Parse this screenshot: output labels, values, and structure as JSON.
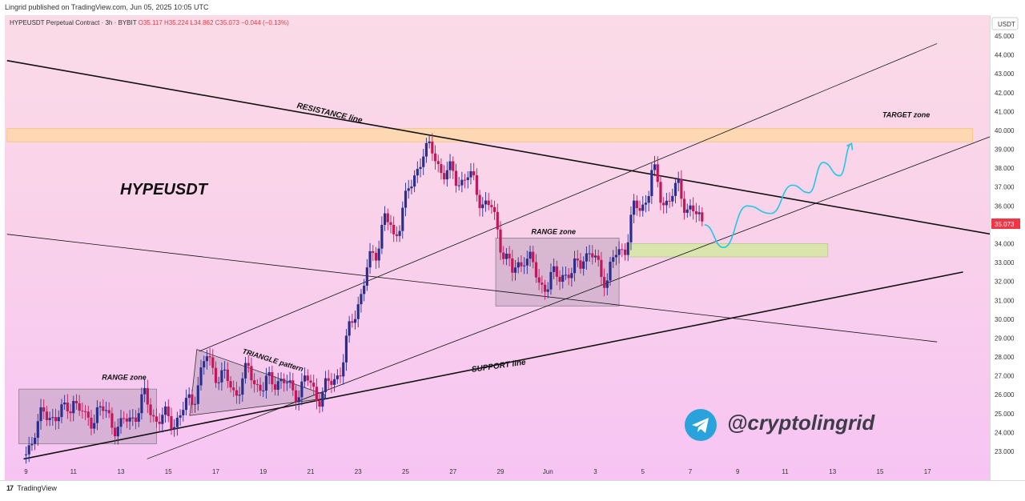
{
  "header": {
    "published": "Lingrid published on TradingView.com, Jun 05, 2025 10:05 UTC"
  },
  "symbol_bar": {
    "name": "HYPEUSDT Perpetual Contract · 3h · BYBIT",
    "open": "O35.117",
    "high": "H35.224",
    "low": "L34.862",
    "close": "C35.073",
    "change": "−0.044 (−0.13%)"
  },
  "brand": {
    "logo": "17",
    "name": "TradingView"
  },
  "watermark": "@cryptolingrid",
  "colors": {
    "up": "#2a2e8f",
    "down": "#c2185b",
    "price_tag": "#f23645",
    "target_zone": "#ffd8a0",
    "support_zone": "#d6e6a6",
    "range_box": "#9e8aa2",
    "wave": "#1ec8e6"
  },
  "chart_data": {
    "type": "candlestick",
    "title": "HYPEUSDT",
    "currency": "USDT",
    "last_price": "35.073",
    "x_ticks": [
      "9",
      "11",
      "13",
      "15",
      "17",
      "19",
      "21",
      "23",
      "25",
      "27",
      "29",
      "Jun",
      "3",
      "5",
      "7",
      "9",
      "11",
      "13",
      "15",
      "17"
    ],
    "y_ticks": [
      "45.000",
      "44.000",
      "43.000",
      "42.000",
      "41.000",
      "40.000",
      "39.000",
      "38.000",
      "37.000",
      "36.000",
      "35.000",
      "34.000",
      "33.000",
      "32.000",
      "31.000",
      "30.000",
      "29.000",
      "28.000",
      "27.000",
      "26.000",
      "25.000",
      "24.000",
      "23.000"
    ],
    "ylim": [
      22.4,
      45.4
    ],
    "price_path": [
      [
        9.0,
        22.8
      ],
      [
        9.4,
        24.4
      ],
      [
        10.0,
        25.0
      ],
      [
        10.6,
        24.9
      ],
      [
        11.0,
        25.9
      ],
      [
        11.5,
        24.5
      ],
      [
        12.0,
        25.2
      ],
      [
        12.6,
        24.7
      ],
      [
        13.0,
        24.2
      ],
      [
        13.6,
        25.1
      ],
      [
        14.0,
        25.7
      ],
      [
        14.5,
        24.8
      ],
      [
        15.0,
        24.6
      ],
      [
        15.5,
        24.9
      ],
      [
        16.0,
        25.8
      ],
      [
        16.6,
        27.9
      ],
      [
        17.2,
        27.0
      ],
      [
        17.8,
        26.2
      ],
      [
        18.4,
        27.2
      ],
      [
        19.0,
        26.3
      ],
      [
        19.6,
        27.0
      ],
      [
        20.2,
        26.1
      ],
      [
        20.8,
        26.7
      ],
      [
        21.3,
        26.0
      ],
      [
        21.8,
        26.4
      ],
      [
        22.3,
        27.6
      ],
      [
        22.7,
        29.6
      ],
      [
        23.0,
        31.0
      ],
      [
        23.4,
        32.6
      ],
      [
        23.8,
        33.8
      ],
      [
        24.1,
        35.6
      ],
      [
        24.5,
        34.1
      ],
      [
        24.9,
        36.2
      ],
      [
        25.3,
        37.0
      ],
      [
        25.7,
        39.1
      ],
      [
        26.2,
        38.6
      ],
      [
        26.6,
        37.9
      ],
      [
        27.1,
        37.4
      ],
      [
        27.6,
        37.6
      ],
      [
        28.2,
        36.4
      ],
      [
        28.6,
        35.8
      ],
      [
        29.0,
        34.2
      ],
      [
        29.5,
        32.3
      ],
      [
        30.0,
        33.5
      ],
      [
        30.6,
        32.1
      ],
      [
        31.0,
        31.8
      ],
      [
        31.6,
        32.6
      ],
      [
        32.0,
        32.2
      ],
      [
        32.5,
        33.6
      ],
      [
        33.0,
        33.0
      ],
      [
        33.5,
        32.2
      ],
      [
        33.9,
        33.4
      ],
      [
        34.3,
        34.1
      ],
      [
        34.6,
        35.6
      ],
      [
        34.9,
        36.0
      ],
      [
        35.2,
        36.6
      ],
      [
        35.4,
        37.9
      ],
      [
        35.7,
        36.6
      ],
      [
        36.1,
        36.3
      ],
      [
        36.5,
        36.9
      ],
      [
        36.9,
        36.0
      ],
      [
        37.2,
        35.4
      ],
      [
        37.6,
        35.07
      ]
    ],
    "forecast_path": [
      [
        37.6,
        35.0
      ],
      [
        38.4,
        33.8
      ],
      [
        39.4,
        36.0
      ],
      [
        40.4,
        35.6
      ],
      [
        41.3,
        37.1
      ],
      [
        42.0,
        36.7
      ],
      [
        42.6,
        38.3
      ],
      [
        43.3,
        37.6
      ],
      [
        43.8,
        39.3
      ]
    ],
    "lines": [
      {
        "label": "RESISTANCE line",
        "from": [
          8.2,
          43.7
        ],
        "to": [
          49.7,
          34.5
        ]
      },
      {
        "label": "SUPPORT line",
        "from": [
          8.9,
          22.6
        ],
        "to": [
          48.5,
          32.5
        ]
      },
      {
        "label": "",
        "from": [
          8.2,
          34.5
        ],
        "to": [
          47.4,
          28.8
        ]
      },
      {
        "label": "",
        "from": [
          16.3,
          28.3
        ],
        "to": [
          47.4,
          44.6
        ]
      },
      {
        "label": "",
        "from": [
          14.1,
          22.6
        ],
        "to": [
          49.7,
          39.7
        ]
      }
    ],
    "zones": [
      {
        "label": "TARGET zone",
        "x": [
          8.2,
          48.9
        ],
        "y": [
          39.4,
          40.1
        ]
      },
      {
        "label": "",
        "x": [
          34.4,
          42.8
        ],
        "y": [
          33.3,
          34.0
        ]
      },
      {
        "label": "RANGE zone",
        "x": [
          8.7,
          14.5
        ],
        "y": [
          23.4,
          26.3
        ]
      },
      {
        "label": "RANGE zone",
        "x": [
          28.8,
          34.0
        ],
        "y": [
          30.7,
          34.3
        ]
      },
      {
        "label": "TRIANGLE pattern",
        "x": [
          16.2,
          21.6
        ],
        "y": [
          24.9,
          28.4
        ]
      }
    ],
    "annotations": [
      "RESISTANCE line",
      "SUPPORT line",
      "TARGET zone",
      "RANGE zone",
      "RANGE zone",
      "TRIANGLE pattern"
    ]
  }
}
